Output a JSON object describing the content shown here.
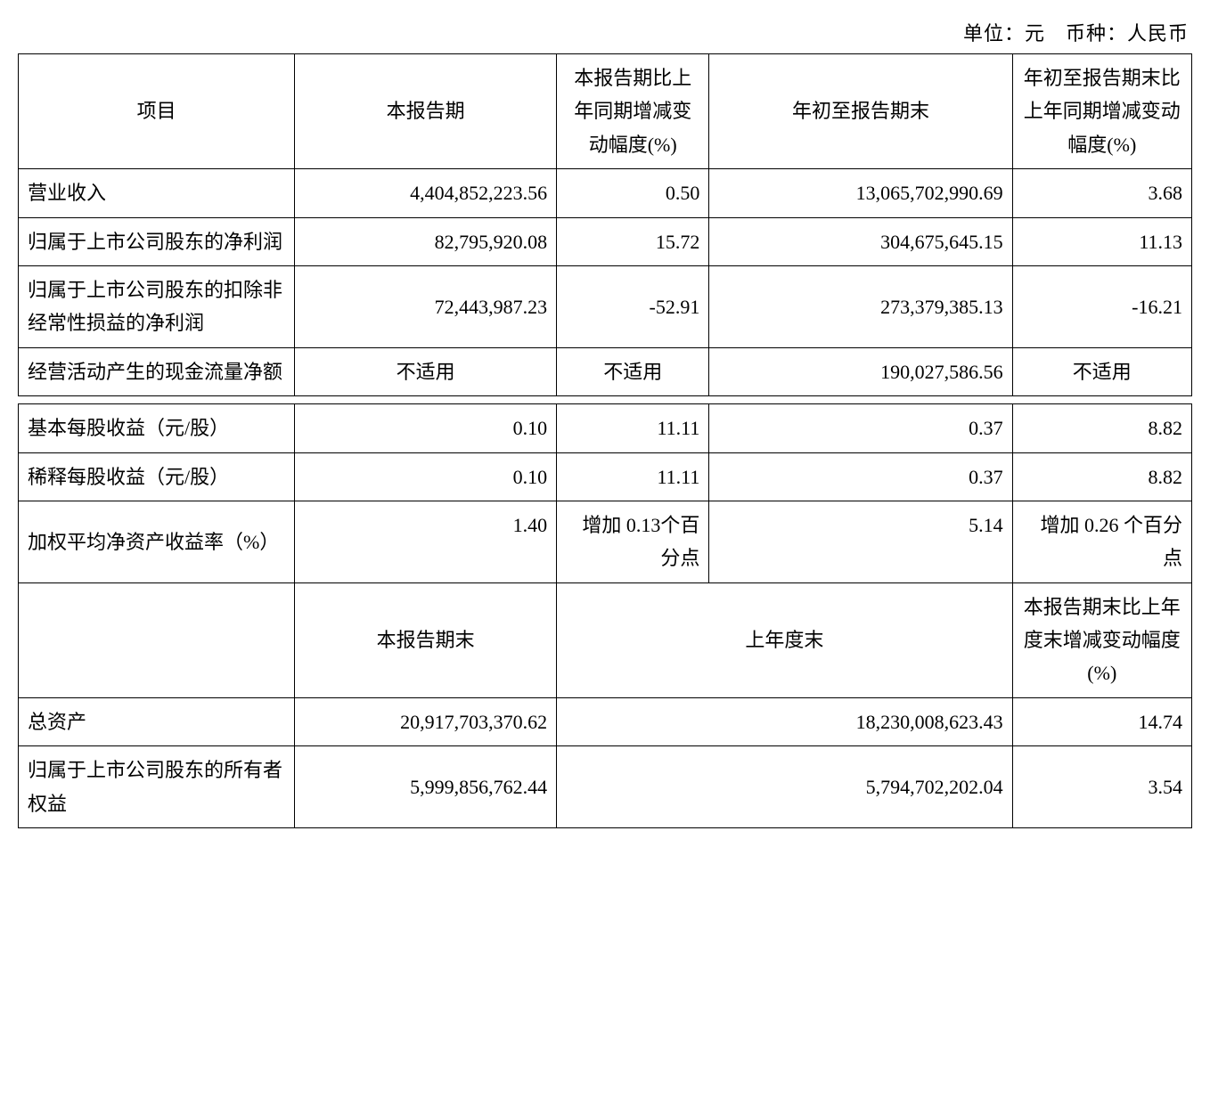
{
  "caption": "单位：元　币种：人民币",
  "headers1": {
    "item": "项目",
    "period": "本报告期",
    "change1": "本报告期比上年同期增减变动幅度(%)",
    "ytd": "年初至报告期末",
    "change2": "年初至报告期末比上年同期增减变动幅度(%)"
  },
  "rows1": [
    {
      "label": "营业收入",
      "period": "4,404,852,223.56",
      "change1": "0.50",
      "ytd": "13,065,702,990.69",
      "change2": "3.68"
    },
    {
      "label": "归属于上市公司股东的净利润",
      "period": "82,795,920.08",
      "change1": "15.72",
      "ytd": "304,675,645.15",
      "change2": "11.13"
    },
    {
      "label": "归属于上市公司股东的扣除非经常性损益的净利润",
      "period": "72,443,987.23",
      "change1": "-52.91",
      "ytd": "273,379,385.13",
      "change2": "-16.21"
    },
    {
      "label": "经营活动产生的现金流量净额",
      "period": "不适用",
      "change1": "不适用",
      "ytd": "190,027,586.56",
      "change2": "不适用",
      "period_center": true,
      "change1_center": true,
      "change2_center": true
    }
  ],
  "rows2": [
    {
      "label": "基本每股收益（元/股）",
      "period": "0.10",
      "change1": "11.11",
      "ytd": "0.37",
      "change2": "8.82",
      "valign_top": true
    },
    {
      "label": "稀释每股收益（元/股）",
      "period": "0.10",
      "change1": "11.11",
      "ytd": "0.37",
      "change2": "8.82",
      "valign_top": true
    },
    {
      "label": "加权平均净资产收益率（%）",
      "period": "1.40",
      "change1": "增加 0.13个百分点",
      "ytd": "5.14",
      "change2": "增加 0.26 个百分点",
      "valign_top": true
    }
  ],
  "headers2": {
    "item": "",
    "period_end": "本报告期末",
    "prev_year_end": "上年度末",
    "change": "本报告期末比上年度末增减变动幅度(%)"
  },
  "rows3": [
    {
      "label": "总资产",
      "period_end": "20,917,703,370.62",
      "prev_year_end": "18,230,008,623.43",
      "change": "14.74"
    },
    {
      "label": "归属于上市公司股东的所有者权益",
      "period_end": "5,999,856,762.44",
      "prev_year_end": "5,794,702,202.04",
      "change": "3.54"
    }
  ],
  "style": {
    "font_family": "SimSun",
    "font_size_pt": 16,
    "border_color": "#000000",
    "background_color": "#ffffff",
    "text_color": "#000000"
  }
}
